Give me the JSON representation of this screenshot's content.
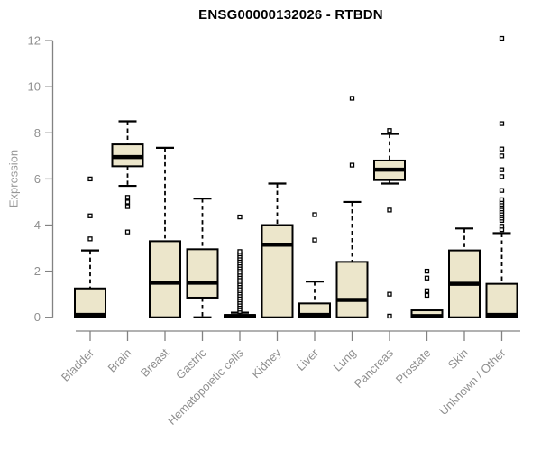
{
  "chart_data": {
    "type": "boxplot",
    "title": "ENSG00000132026 - RTBDN",
    "ylabel": "Expression",
    "xlabel": "",
    "ylim": [
      0,
      12
    ],
    "y_ticks": [
      0,
      2,
      4,
      6,
      8,
      10,
      12
    ],
    "grid": false,
    "legend": "none",
    "colors": {
      "box_fill": "#ECE6CB",
      "box_stroke": "#000000",
      "axis": "#828282",
      "tick_label": "#8f8f8f",
      "outlier_fill": "#ffffff"
    },
    "categories": [
      "Bladder",
      "Brain",
      "Breast",
      "Gastric",
      "Hematopoietic cells",
      "Kidney",
      "Liver",
      "Lung",
      "Pancreas",
      "Prostate",
      "Skin",
      "Unknown / Other"
    ],
    "series": [
      {
        "category": "Bladder",
        "whisker_low": 0,
        "q1": 0,
        "median": 0.1,
        "q3": 1.25,
        "whisker_high": 2.9,
        "outliers": [
          3.4,
          4.4,
          6.0
        ]
      },
      {
        "category": "Brain",
        "whisker_low": 5.7,
        "q1": 6.55,
        "median": 6.95,
        "q3": 7.5,
        "whisker_high": 8.5,
        "outliers": [
          5.2,
          5.0,
          4.8,
          3.7
        ]
      },
      {
        "category": "Breast",
        "whisker_low": 0,
        "q1": 0,
        "median": 1.5,
        "q3": 3.3,
        "whisker_high": 7.35,
        "outliers": []
      },
      {
        "category": "Gastric",
        "whisker_low": 0,
        "q1": 0.85,
        "median": 1.5,
        "q3": 2.95,
        "whisker_high": 5.15,
        "outliers": []
      },
      {
        "category": "Hematopoietic cells",
        "whisker_low": 0,
        "q1": 0,
        "median": 0.05,
        "q3": 0.1,
        "whisker_high": 0.2,
        "outliers": [
          0.25,
          0.35,
          0.45,
          0.55,
          0.65,
          0.75,
          0.85,
          0.95,
          1.05,
          1.15,
          1.25,
          1.35,
          1.45,
          1.55,
          1.65,
          1.75,
          1.85,
          1.95,
          2.05,
          2.15,
          2.25,
          2.35,
          2.45,
          2.55,
          2.65,
          2.75,
          2.85,
          4.35
        ]
      },
      {
        "category": "Kidney",
        "whisker_low": 0,
        "q1": 0,
        "median": 3.15,
        "q3": 4.0,
        "whisker_high": 5.8,
        "outliers": []
      },
      {
        "category": "Liver",
        "whisker_low": 0,
        "q1": 0,
        "median": 0.1,
        "q3": 0.6,
        "whisker_high": 1.55,
        "outliers": [
          3.35,
          4.45
        ]
      },
      {
        "category": "Lung",
        "whisker_low": 0,
        "q1": 0,
        "median": 0.75,
        "q3": 2.4,
        "whisker_high": 5.0,
        "outliers": [
          6.6,
          9.5
        ]
      },
      {
        "category": "Pancreas",
        "whisker_low": 5.8,
        "q1": 5.95,
        "median": 6.4,
        "q3": 6.8,
        "whisker_high": 7.95,
        "outliers": [
          8.1,
          4.65,
          1.0,
          0.05
        ]
      },
      {
        "category": "Prostate",
        "whisker_low": 0,
        "q1": 0,
        "median": 0.05,
        "q3": 0.3,
        "whisker_high": 0.3,
        "outliers": [
          0.95,
          1.15,
          1.7,
          2.0
        ]
      },
      {
        "category": "Skin",
        "whisker_low": 0,
        "q1": 0,
        "median": 1.45,
        "q3": 2.9,
        "whisker_high": 3.85,
        "outliers": []
      },
      {
        "category": "Unknown / Other",
        "whisker_low": 0,
        "q1": 0,
        "median": 0.1,
        "q3": 1.45,
        "whisker_high": 3.65,
        "outliers": [
          3.8,
          3.95,
          4.2,
          4.3,
          4.4,
          4.5,
          4.6,
          4.7,
          4.8,
          4.9,
          5.0,
          5.1,
          5.5,
          6.1,
          6.4,
          7.0,
          7.3,
          8.4,
          12.1
        ]
      }
    ]
  }
}
